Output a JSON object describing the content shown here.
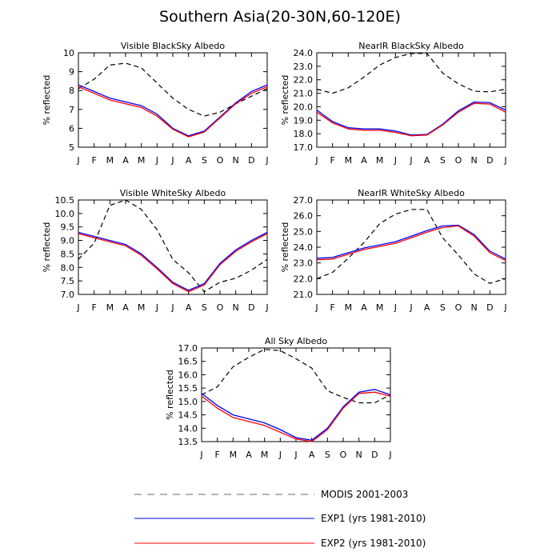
{
  "title": "Southern Asia(20-30N,60-120E)",
  "colors": {
    "modis": "#000000",
    "exp1": "#0000ff",
    "exp2": "#ff0000"
  },
  "legend": [
    {
      "label": "MODIS 2001-2003",
      "style": "dashed",
      "color": "#000000"
    },
    {
      "label": "EXP1 (yrs 1981-2010)",
      "style": "solid",
      "color": "#0000ff"
    },
    {
      "label": "EXP2 (yrs 1981-2010)",
      "style": "solid",
      "color": "#ff0000"
    }
  ],
  "chart_data": [
    {
      "type": "line",
      "title": "Visible BlackSky Albedo",
      "ylabel": "% reflected",
      "categories": [
        "J",
        "F",
        "M",
        "A",
        "M",
        "J",
        "J",
        "A",
        "S",
        "O",
        "N",
        "D",
        "J"
      ],
      "ylim": [
        5,
        10
      ],
      "yticks": [
        "5",
        "6",
        "7",
        "8",
        "9",
        "10"
      ],
      "series": [
        {
          "name": "MODIS 2001-2003",
          "values": [
            8.1,
            8.6,
            9.35,
            9.45,
            9.2,
            8.4,
            7.6,
            7.0,
            6.65,
            6.85,
            7.3,
            7.7,
            8.1
          ]
        },
        {
          "name": "EXP1 (yrs 1981-2010)",
          "values": [
            8.3,
            7.95,
            7.6,
            7.4,
            7.2,
            6.75,
            6.0,
            5.6,
            5.85,
            6.6,
            7.35,
            7.95,
            8.3
          ]
        },
        {
          "name": "EXP2 (yrs 1981-2010)",
          "values": [
            8.2,
            7.85,
            7.5,
            7.3,
            7.1,
            6.65,
            5.95,
            5.55,
            5.8,
            6.55,
            7.3,
            7.85,
            8.2
          ]
        }
      ]
    },
    {
      "type": "line",
      "title": "NearIR BlackSky Albedo",
      "ylabel": "% reflected",
      "categories": [
        "J",
        "F",
        "M",
        "A",
        "M",
        "J",
        "J",
        "A",
        "S",
        "O",
        "N",
        "D",
        "J"
      ],
      "ylim": [
        17.0,
        24.0
      ],
      "yticks": [
        "17.0",
        "18.0",
        "19.0",
        "20.0",
        "21.0",
        "22.0",
        "23.0",
        "24.0"
      ],
      "series": [
        {
          "name": "MODIS 2001-2003",
          "values": [
            21.3,
            21.0,
            21.4,
            22.2,
            23.1,
            23.65,
            23.95,
            23.95,
            22.5,
            21.7,
            21.15,
            21.1,
            21.3
          ]
        },
        {
          "name": "EXP1 (yrs 1981-2010)",
          "values": [
            19.75,
            18.9,
            18.45,
            18.35,
            18.35,
            18.2,
            17.9,
            17.95,
            18.7,
            19.7,
            20.35,
            20.3,
            19.75
          ]
        },
        {
          "name": "EXP2 (yrs 1981-2010)",
          "values": [
            19.6,
            18.8,
            18.35,
            18.25,
            18.25,
            18.1,
            17.85,
            17.9,
            18.65,
            19.6,
            20.25,
            20.2,
            19.6
          ]
        }
      ]
    },
    {
      "type": "line",
      "title": "Visible WhiteSky Albedo",
      "ylabel": "% reflected",
      "categories": [
        "J",
        "F",
        "M",
        "A",
        "M",
        "J",
        "J",
        "A",
        "S",
        "O",
        "N",
        "D",
        "J"
      ],
      "ylim": [
        7.0,
        10.5
      ],
      "yticks": [
        "7.0",
        "7.5",
        "8.0",
        "8.5",
        "9.0",
        "9.5",
        "10.0",
        "10.5"
      ],
      "series": [
        {
          "name": "MODIS 2001-2003",
          "values": [
            8.3,
            8.9,
            10.3,
            10.5,
            10.15,
            9.4,
            8.3,
            7.8,
            7.1,
            7.45,
            7.6,
            7.9,
            8.3
          ]
        },
        {
          "name": "EXP1 (yrs 1981-2010)",
          "values": [
            9.3,
            9.15,
            9.0,
            8.85,
            8.5,
            8.0,
            7.45,
            7.15,
            7.4,
            8.15,
            8.65,
            9.0,
            9.3
          ]
        },
        {
          "name": "EXP2 (yrs 1981-2010)",
          "values": [
            9.25,
            9.1,
            8.95,
            8.8,
            8.45,
            7.95,
            7.4,
            7.1,
            7.35,
            8.1,
            8.6,
            8.95,
            9.25
          ]
        }
      ]
    },
    {
      "type": "line",
      "title": "NearIR WhiteSky Albedo",
      "ylabel": "% reflected",
      "categories": [
        "J",
        "F",
        "M",
        "A",
        "M",
        "J",
        "J",
        "A",
        "S",
        "O",
        "N",
        "D",
        "J"
      ],
      "ylim": [
        21.0,
        27.0
      ],
      "yticks": [
        "21.0",
        "22.0",
        "23.0",
        "24.0",
        "25.0",
        "26.0",
        "27.0"
      ],
      "series": [
        {
          "name": "MODIS 2001-2003",
          "values": [
            22.0,
            22.4,
            23.3,
            24.3,
            25.5,
            26.1,
            26.4,
            26.4,
            24.6,
            23.5,
            22.3,
            21.7,
            22.0
          ]
        },
        {
          "name": "EXP1 (yrs 1981-2010)",
          "values": [
            23.3,
            23.35,
            23.65,
            23.95,
            24.15,
            24.35,
            24.7,
            25.05,
            25.35,
            25.4,
            24.8,
            23.75,
            23.25
          ]
        },
        {
          "name": "EXP2 (yrs 1981-2010)",
          "values": [
            23.2,
            23.25,
            23.55,
            23.85,
            24.05,
            24.25,
            24.6,
            24.95,
            25.25,
            25.35,
            24.7,
            23.65,
            23.15
          ]
        }
      ]
    },
    {
      "type": "line",
      "title": "All Sky Albedo",
      "ylabel": "% reflected",
      "categories": [
        "J",
        "F",
        "M",
        "A",
        "M",
        "J",
        "J",
        "A",
        "S",
        "O",
        "N",
        "D",
        "J"
      ],
      "ylim": [
        13.5,
        17.0
      ],
      "yticks": [
        "13.5",
        "14.0",
        "14.5",
        "15.0",
        "15.5",
        "16.0",
        "16.5",
        "17.0"
      ],
      "series": [
        {
          "name": "MODIS 2001-2003",
          "values": [
            15.25,
            15.55,
            16.3,
            16.65,
            16.95,
            16.9,
            16.6,
            16.25,
            15.4,
            15.15,
            14.95,
            14.95,
            15.25
          ]
        },
        {
          "name": "EXP1 (yrs 1981-2010)",
          "values": [
            15.3,
            14.85,
            14.5,
            14.35,
            14.2,
            13.95,
            13.65,
            13.55,
            14.0,
            14.8,
            15.35,
            15.45,
            15.25
          ]
        },
        {
          "name": "EXP2 (yrs 1981-2010)",
          "values": [
            15.2,
            14.75,
            14.4,
            14.25,
            14.1,
            13.85,
            13.6,
            13.5,
            13.95,
            14.75,
            15.3,
            15.35,
            15.2
          ]
        }
      ]
    }
  ]
}
